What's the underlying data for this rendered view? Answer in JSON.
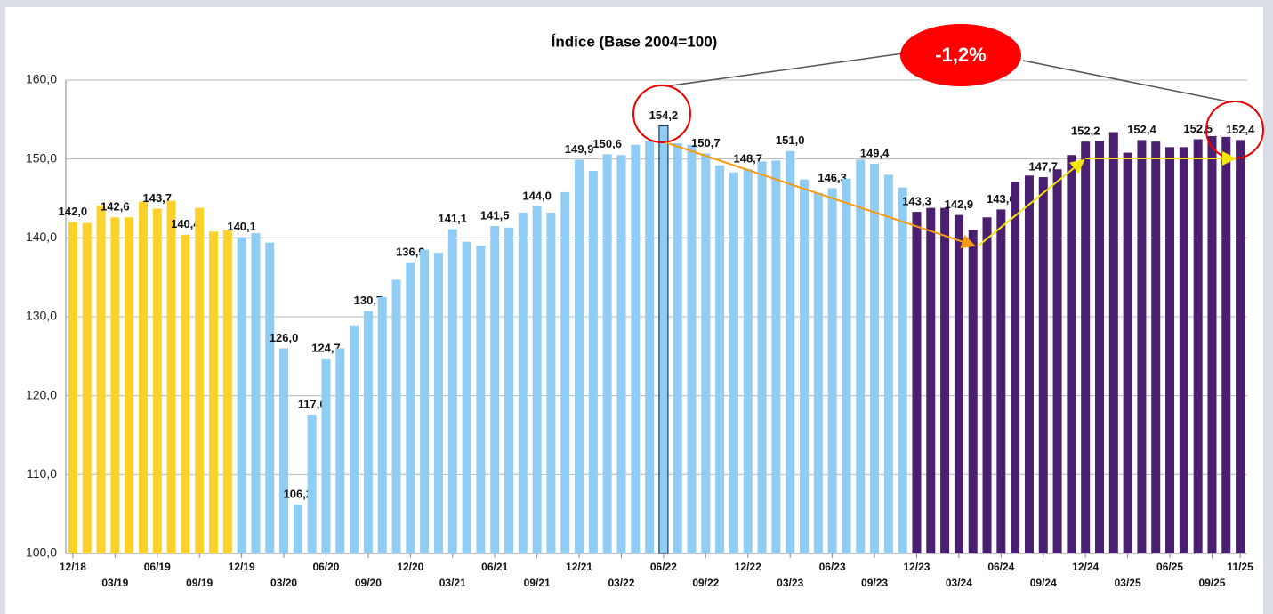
{
  "chart_data": {
    "type": "bar",
    "title": "Índice (Base 2004=100)",
    "categories": [
      "12/18",
      null,
      null,
      "03/19",
      null,
      null,
      "06/19",
      null,
      null,
      "09/19",
      null,
      null,
      "12/19",
      null,
      null,
      "03/20",
      null,
      null,
      "06/20",
      null,
      null,
      "09/20",
      null,
      null,
      "12/20",
      null,
      null,
      "03/21",
      null,
      null,
      "06/21",
      null,
      null,
      "09/21",
      null,
      null,
      "12/21",
      null,
      null,
      "03/22",
      null,
      null,
      "06/22",
      null,
      null,
      "09/22",
      null,
      null,
      "12/22",
      null,
      null,
      "03/23",
      null,
      null,
      "06/23",
      null,
      null,
      "09/23",
      null,
      null,
      "12/23",
      null,
      null,
      "03/24",
      null,
      null,
      "06/24",
      null,
      null,
      "09/24",
      null,
      null,
      "12/24",
      null,
      null,
      "03/25",
      null,
      null,
      "06/25",
      null,
      null,
      "09/25",
      null,
      "11/25"
    ],
    "values": [
      142.0,
      141.9,
      144.1,
      142.6,
      142.6,
      144.6,
      143.7,
      144.7,
      140.4,
      143.8,
      140.8,
      141.0,
      140.1,
      140.6,
      139.4,
      126.0,
      106.2,
      117.6,
      124.7,
      126.0,
      128.9,
      130.7,
      132.5,
      134.7,
      136.9,
      138.5,
      138.1,
      141.1,
      139.5,
      139.0,
      141.5,
      141.3,
      143.2,
      144.0,
      143.2,
      145.8,
      149.9,
      148.5,
      150.6,
      150.5,
      151.8,
      152.3,
      154.2,
      152.0,
      151.8,
      150.7,
      149.2,
      148.3,
      148.7,
      149.7,
      149.8,
      151.0,
      147.4,
      145.7,
      146.3,
      147.5,
      149.9,
      149.4,
      148.0,
      146.4,
      143.3,
      143.8,
      143.8,
      142.9,
      141.0,
      142.6,
      143.6,
      147.1,
      147.9,
      147.7,
      148.7,
      150.5,
      152.2,
      152.3,
      153.4,
      150.8,
      152.4,
      152.2,
      151.5,
      151.5,
      152.5,
      152.9,
      152.8,
      152.4
    ],
    "value_labels": [
      "142,0",
      null,
      null,
      "142,6",
      null,
      null,
      "143,7",
      null,
      "140,4",
      null,
      null,
      null,
      "140,1",
      null,
      null,
      "126,0",
      "106,2",
      "117,6",
      "124,7",
      null,
      null,
      "130,7",
      null,
      null,
      "136,9",
      null,
      null,
      "141,1",
      null,
      null,
      "141,5",
      null,
      null,
      "144,0",
      null,
      null,
      "149,9",
      null,
      "150,6",
      null,
      null,
      null,
      "154,2",
      null,
      null,
      "150,7",
      null,
      null,
      "148,7",
      null,
      null,
      "151,0",
      null,
      null,
      "146,3",
      null,
      null,
      "149,4",
      null,
      null,
      "143,3",
      null,
      null,
      "142,9",
      null,
      null,
      "143,6",
      null,
      null,
      "147,7",
      null,
      null,
      "152,2",
      null,
      null,
      null,
      "152,4",
      null,
      null,
      null,
      "152,5",
      null,
      null,
      "152,4"
    ],
    "colors": [
      "#fad22b",
      "#fad22b",
      "#fad22b",
      "#fad22b",
      "#fad22b",
      "#fad22b",
      "#fad22b",
      "#fad22b",
      "#fad22b",
      "#fad22b",
      "#fad22b",
      "#fad22b",
      "#8fcdf5",
      "#8fcdf5",
      "#8fcdf5",
      "#8fcdf5",
      "#8fcdf5",
      "#8fcdf5",
      "#8fcdf5",
      "#8fcdf5",
      "#8fcdf5",
      "#8fcdf5",
      "#8fcdf5",
      "#8fcdf5",
      "#8fcdf5",
      "#8fcdf5",
      "#8fcdf5",
      "#8fcdf5",
      "#8fcdf5",
      "#8fcdf5",
      "#8fcdf5",
      "#8fcdf5",
      "#8fcdf5",
      "#8fcdf5",
      "#8fcdf5",
      "#8fcdf5",
      "#8fcdf5",
      "#8fcdf5",
      "#8fcdf5",
      "#8fcdf5",
      "#8fcdf5",
      "#8fcdf5",
      "#8fcdf5",
      "#8fcdf5",
      "#8fcdf5",
      "#8fcdf5",
      "#8fcdf5",
      "#8fcdf5",
      "#8fcdf5",
      "#8fcdf5",
      "#8fcdf5",
      "#8fcdf5",
      "#8fcdf5",
      "#8fcdf5",
      "#8fcdf5",
      "#8fcdf5",
      "#8fcdf5",
      "#8fcdf5",
      "#8fcdf5",
      "#8fcdf5",
      "#4b1f6f",
      "#4b1f6f",
      "#4b1f6f",
      "#4b1f6f",
      "#4b1f6f",
      "#4b1f6f",
      "#4b1f6f",
      "#4b1f6f",
      "#4b1f6f",
      "#4b1f6f",
      "#4b1f6f",
      "#4b1f6f",
      "#4b1f6f",
      "#4b1f6f",
      "#4b1f6f",
      "#4b1f6f",
      "#4b1f6f",
      "#4b1f6f",
      "#4b1f6f",
      "#4b1f6f",
      "#4b1f6f",
      "#4b1f6f",
      "#4b1f6f",
      "#4b1f6f"
    ],
    "outlined_categories": [
      "06/22"
    ],
    "ylim": [
      100,
      160
    ],
    "yticks": [
      {
        "value": 100,
        "label": "100,0"
      },
      {
        "value": 110,
        "label": "110,0"
      },
      {
        "value": 120,
        "label": "120,0"
      },
      {
        "value": 130,
        "label": "130,0"
      },
      {
        "value": 140,
        "label": "140,0"
      },
      {
        "value": 150,
        "label": "150,0"
      },
      {
        "value": 160,
        "label": "160,0"
      }
    ],
    "grid": true,
    "annotation": "-1,2%"
  }
}
